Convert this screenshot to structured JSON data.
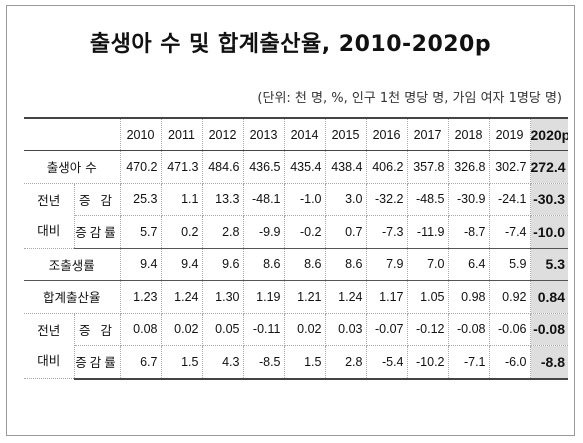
{
  "title": "출생아 수 및 합계출산율, 2010-2020p",
  "unit_note": "(단위: 천 명, %, 인구 1천 명당 명, 가임 여자 1명당 명)",
  "years": [
    "2010",
    "2011",
    "2012",
    "2013",
    "2014",
    "2015",
    "2016",
    "2017",
    "2018",
    "2019",
    "2020p"
  ],
  "groups": {
    "prev_year_1": [
      "전년",
      "대비"
    ],
    "prev_year_2": [
      "전년",
      "대비"
    ]
  },
  "rows": {
    "births": {
      "label": "출생아 수",
      "values": [
        "470.2",
        "471.3",
        "484.6",
        "436.5",
        "435.4",
        "438.4",
        "406.2",
        "357.8",
        "326.8",
        "302.7",
        "272.4"
      ]
    },
    "births_change": {
      "label": "증 감",
      "values": [
        "25.3",
        "1.1",
        "13.3",
        "-48.1",
        "-1.0",
        "3.0",
        "-32.2",
        "-48.5",
        "-30.9",
        "-24.1",
        "-30.3"
      ]
    },
    "births_rate": {
      "label": "증감률",
      "values": [
        "5.7",
        "0.2",
        "2.8",
        "-9.9",
        "-0.2",
        "0.7",
        "-7.3",
        "-11.9",
        "-8.7",
        "-7.4",
        "-10.0"
      ]
    },
    "crude_birth_rate": {
      "label": "조출생률",
      "values": [
        "9.4",
        "9.4",
        "9.6",
        "8.6",
        "8.6",
        "8.6",
        "7.9",
        "7.0",
        "6.4",
        "5.9",
        "5.3"
      ]
    },
    "tfr": {
      "label": "합계출산율",
      "values": [
        "1.23",
        "1.24",
        "1.30",
        "1.19",
        "1.21",
        "1.24",
        "1.17",
        "1.05",
        "0.98",
        "0.92",
        "0.84"
      ]
    },
    "tfr_change": {
      "label": "증 감",
      "values": [
        "0.08",
        "0.02",
        "0.05",
        "-0.11",
        "0.02",
        "0.03",
        "-0.07",
        "-0.12",
        "-0.08",
        "-0.06",
        "-0.08"
      ]
    },
    "tfr_rate": {
      "label": "증감률",
      "values": [
        "6.7",
        "1.5",
        "4.3",
        "-8.5",
        "1.5",
        "2.8",
        "-5.4",
        "-10.2",
        "-7.1",
        "-6.0",
        "-8.8"
      ]
    }
  },
  "colors": {
    "highlight_column": "#dedede",
    "border": "#444444"
  }
}
